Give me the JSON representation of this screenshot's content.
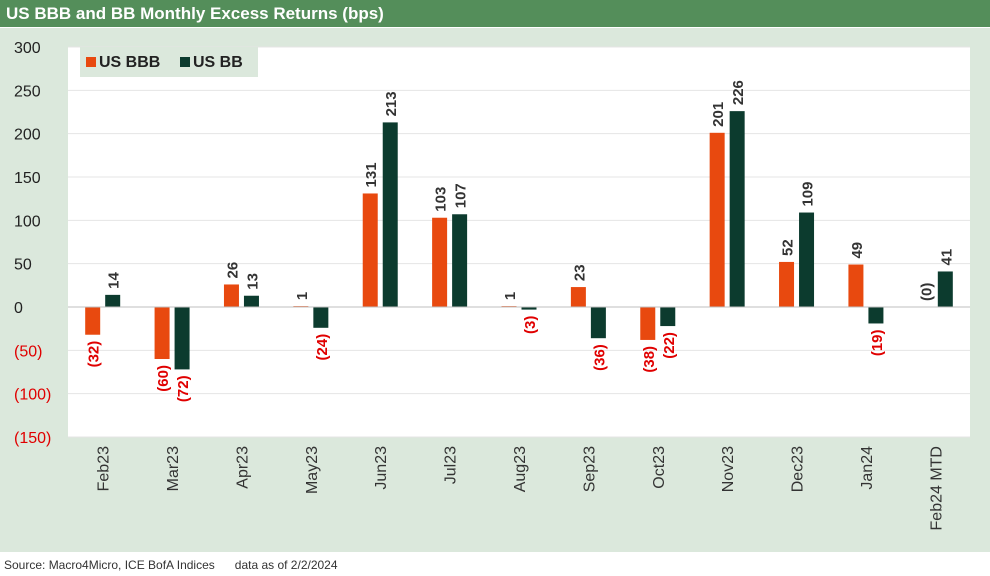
{
  "title": "US BBB and BB Monthly Excess Returns (bps)",
  "footer": {
    "source": "Source: Macro4Micro, ICE BofA Indices",
    "as_of": "data as of 2/2/2024"
  },
  "colors": {
    "title_bg": "#548e5a",
    "chart_bg": "#dbe8dc",
    "bbb": "#e8490f",
    "bb": "#0c3b2e",
    "negative_label": "#e00000"
  },
  "chart_data": {
    "type": "bar",
    "title": "US BBB and BB Monthly Excess Returns (bps)",
    "categories": [
      "Feb23",
      "Mar23",
      "Apr23",
      "May23",
      "Jun23",
      "Jul23",
      "Aug23",
      "Sep23",
      "Oct23",
      "Nov23",
      "Dec23",
      "Jan24",
      "Feb24 MTD"
    ],
    "series": [
      {
        "name": "US BBB",
        "values": [
          -32,
          -60,
          26,
          1,
          131,
          103,
          1,
          23,
          -38,
          201,
          52,
          49,
          0
        ],
        "labels": [
          "(32)",
          "(60)",
          "26",
          "1",
          "131",
          "103",
          "1",
          "23",
          "(38)",
          "201",
          "52",
          "49",
          "(0)"
        ]
      },
      {
        "name": "US BB",
        "values": [
          14,
          -72,
          13,
          -24,
          213,
          107,
          -3,
          -36,
          -22,
          226,
          109,
          -19,
          41
        ],
        "labels": [
          "14",
          "(72)",
          "13",
          "(24)",
          "213",
          "107",
          "(3)",
          "(36)",
          "(22)",
          "226",
          "109",
          "(19)",
          "41"
        ]
      }
    ],
    "ylim": [
      -150,
      300
    ],
    "y_ticks": [
      300,
      250,
      200,
      150,
      100,
      50,
      0,
      -50,
      -100,
      -150
    ],
    "y_tick_labels": [
      "300",
      "250",
      "200",
      "150",
      "100",
      "50",
      "0",
      "(50)",
      "(100)",
      "(150)"
    ],
    "xlabel": "",
    "ylabel": "",
    "grid": true,
    "legend_position": "top-left"
  }
}
